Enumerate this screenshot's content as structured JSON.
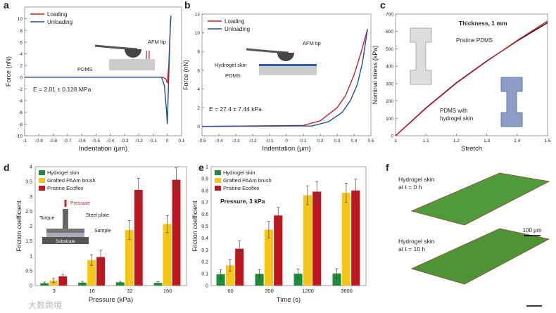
{
  "colors": {
    "red": "#c8202b",
    "blue": "#1f4e9a",
    "green": "#1e8c3a",
    "yellow": "#f5c518",
    "darkred": "#c0161f"
  },
  "chart_data": [
    {
      "panel": "a",
      "type": "line",
      "xlabel": "Indentation (μm)",
      "ylabel": "Force (nN)",
      "xlim": [
        -1,
        0.1
      ],
      "ylim": [
        -10,
        12
      ],
      "xticks": [
        "-1",
        "-0.9",
        "-0.8",
        "-0.7",
        "-0.6",
        "-0.5",
        "-0.4",
        "-0.3",
        "-0.2",
        "-0.1",
        "0",
        "0.1"
      ],
      "yticks": [
        "-10",
        "-8",
        "-6",
        "-4",
        "-2",
        "0",
        "2",
        "4",
        "6",
        "8",
        "10"
      ],
      "annotation": "E = 2.01 ± 0.128 MPa",
      "inset": [
        "AFM tip",
        "PDMS"
      ],
      "series": [
        {
          "name": "Loading",
          "color": "#c8202b",
          "x": [
            -1,
            -0.03,
            -0.01,
            0.0,
            0.01,
            0.02,
            0.025
          ],
          "y": [
            0,
            0,
            -0.3,
            -1,
            2,
            8,
            10.5
          ]
        },
        {
          "name": "Unloading",
          "color": "#1f4e9a",
          "x": [
            -1,
            -0.04,
            -0.02,
            -0.005,
            0.0,
            0.01,
            0.02,
            0.025
          ],
          "y": [
            0,
            0,
            -1.5,
            -6,
            -8,
            0,
            8,
            10.5
          ]
        }
      ]
    },
    {
      "panel": "b",
      "type": "line",
      "xlabel": "Indentation (μm)",
      "ylabel": "Force (nN)",
      "xlim": [
        -0.5,
        0.5
      ],
      "ylim": [
        -1,
        12
      ],
      "xticks": [
        "-0.5",
        "-0.4",
        "-0.3",
        "-0.2",
        "-0.1",
        "0",
        "0.1",
        "0.2",
        "0.3",
        "0.4",
        "0.5"
      ],
      "yticks": [
        "0",
        "2",
        "4",
        "6",
        "8",
        "10",
        "12"
      ],
      "annotation": "E = 27.4 ± 7.44 kPa",
      "inset": [
        "AFM tip",
        "Hydrogel skin",
        "PDMS"
      ],
      "series": [
        {
          "name": "Loading",
          "color": "#c8202b",
          "x": [
            -0.5,
            0.1,
            0.2,
            0.3,
            0.35,
            0.4,
            0.44,
            0.48
          ],
          "y": [
            0,
            0.1,
            0.6,
            2,
            3.3,
            5.5,
            7.8,
            10.4
          ]
        },
        {
          "name": "Unloading",
          "color": "#1f4e9a",
          "x": [
            -0.5,
            0.15,
            0.25,
            0.33,
            0.38,
            0.42,
            0.45,
            0.48
          ],
          "y": [
            0,
            0.05,
            0.5,
            1.5,
            2.8,
            4.5,
            6.8,
            10.4
          ]
        }
      ]
    },
    {
      "panel": "c",
      "type": "line",
      "xlabel": "Stretch",
      "ylabel": "Nominal stress (kPa)",
      "xlim": [
        1,
        1.5
      ],
      "ylim": [
        0,
        700
      ],
      "xticks": [
        "1",
        "1.1",
        "1.2",
        "1.3",
        "1.4",
        "1.5"
      ],
      "yticks": [
        "0",
        "100",
        "200",
        "300",
        "400",
        "500",
        "600",
        "700"
      ],
      "annotation": "Thickness, 1 mm",
      "labels": [
        "Pristine PDMS",
        "PDMS with hydrogel skin"
      ],
      "series": [
        {
          "name": "Pristine PDMS",
          "color": "#111111",
          "x": [
            1,
            1.05,
            1.1,
            1.2,
            1.3,
            1.4,
            1.5
          ],
          "y": [
            0,
            80,
            160,
            305,
            430,
            545,
            650
          ]
        },
        {
          "name": "PDMS with hydrogel skin",
          "color": "#c8202b",
          "x": [
            1,
            1.05,
            1.1,
            1.2,
            1.3,
            1.4,
            1.5
          ],
          "y": [
            0,
            78,
            158,
            302,
            428,
            548,
            660
          ]
        }
      ]
    },
    {
      "panel": "d",
      "type": "bar",
      "xlabel": "Pressure (kPa)",
      "ylabel": "Friction coefficient",
      "ylim": [
        0,
        4
      ],
      "categories": [
        "3",
        "16",
        "32",
        "160"
      ],
      "yticks": [
        "0",
        "0.5",
        "1",
        "1.5",
        "2",
        "2.5",
        "3",
        "3.5",
        "4"
      ],
      "inset": [
        "Pressure",
        "Torque",
        "Steel plate",
        "Sample",
        "Substrate"
      ],
      "series": [
        {
          "name": "Hydrogel skin",
          "color": "#1e8c3a",
          "values": [
            0.08,
            0.1,
            0.11,
            0.09
          ],
          "err": [
            0.04,
            0.04,
            0.03,
            0.04
          ]
        },
        {
          "name": "Grafted PAAm brush",
          "color": "#f5c518",
          "values": [
            0.17,
            0.86,
            1.87,
            2.07
          ],
          "err": [
            0.07,
            0.18,
            0.32,
            0.29
          ]
        },
        {
          "name": "Pristine Ecoflex",
          "color": "#c0161f",
          "values": [
            0.31,
            0.96,
            3.22,
            3.56
          ],
          "err": [
            0.07,
            0.24,
            0.39,
            0.4
          ]
        }
      ]
    },
    {
      "panel": "e",
      "type": "bar",
      "xlabel": "Time (s)",
      "ylabel": "Friction coefficient",
      "ylim": [
        0,
        1
      ],
      "categories": [
        "60",
        "300",
        "1200",
        "3600"
      ],
      "yticks": [
        "0",
        "0.1",
        "0.2",
        "0.3",
        "0.4",
        "0.5",
        "0.6",
        "0.7",
        "0.8",
        "0.9",
        "1"
      ],
      "annotation": "Pressure, 3 kPa",
      "series": [
        {
          "name": "Hydrogel skin",
          "color": "#1e8c3a",
          "values": [
            0.095,
            0.098,
            0.1,
            0.102
          ],
          "err": [
            0.04,
            0.037,
            0.04,
            0.04
          ]
        },
        {
          "name": "Grafted PAAm brush",
          "color": "#f5c518",
          "values": [
            0.17,
            0.47,
            0.76,
            0.78
          ],
          "err": [
            0.05,
            0.07,
            0.08,
            0.08
          ]
        },
        {
          "name": "Pristine Ecoflex",
          "color": "#c0161f",
          "values": [
            0.31,
            0.59,
            0.79,
            0.8
          ],
          "err": [
            0.065,
            0.07,
            0.085,
            0.095
          ]
        }
      ]
    }
  ],
  "panel_f": {
    "label1": "Hydrogel skin",
    "label1b": "at t = 0 h",
    "label2": "Hydrogel skin",
    "label2b": "at t = 10 h",
    "scale": "100 μm"
  },
  "panel_letters": [
    "a",
    "b",
    "c",
    "d",
    "e",
    "f"
  ],
  "watermark": "大数跨境"
}
